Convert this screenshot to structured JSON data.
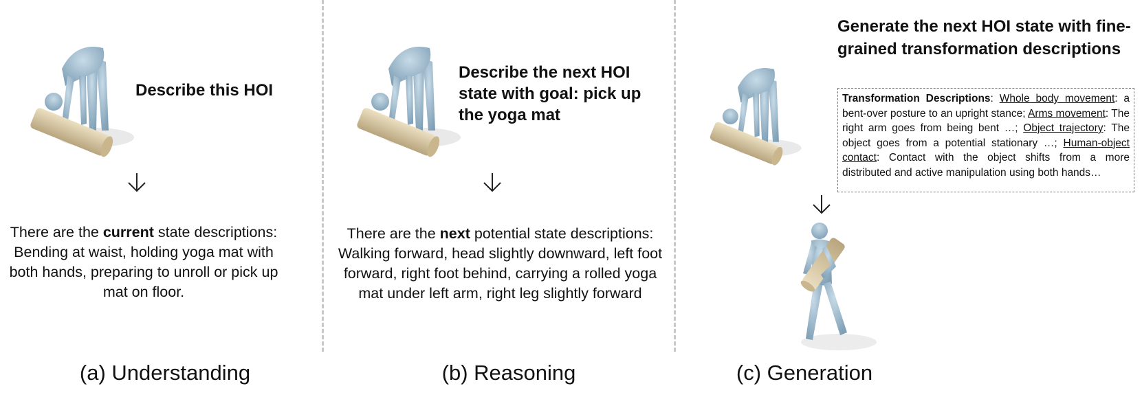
{
  "panels": {
    "understanding": {
      "prompt": "Describe this HOI",
      "arrow_icon": "arrow-down-icon",
      "desc_before": "There are the ",
      "desc_bold": "current",
      "desc_after": " state descriptions: Bending at waist, holding yoga mat with both hands, preparing to unroll or pick up mat on floor.",
      "caption": "(a) Understanding"
    },
    "reasoning": {
      "prompt": "Describe the next HOI state with goal: pick up the yoga mat",
      "arrow_icon": "arrow-down-icon",
      "desc_before": "There are the ",
      "desc_bold": "next",
      "desc_after": " potential state descriptions: Walking forward, head slightly downward, left foot forward, right foot behind, carrying a rolled yoga mat under left arm, right leg slightly forward",
      "caption": "(b) Reasoning"
    },
    "generation": {
      "prompt": "Generate the next HOI state with fine-grained transformation descriptions",
      "arrow_icon": "arrow-down-icon",
      "box": {
        "label": "Transformation Descriptions",
        "colon": ": ",
        "items": [
          {
            "key": "Whole body movement",
            "text": ": a bent-over posture to an upright stance; "
          },
          {
            "key": "Arms movement",
            "text": ": The right arm goes from being bent …; "
          },
          {
            "key": "Object trajectory",
            "text": ": The object goes from a potential stationary …; "
          },
          {
            "key": "Human-object contact",
            "text": ": Contact with the object shifts from a more distributed and active manipulation using both hands…"
          }
        ]
      },
      "caption": "(c) Generation"
    }
  },
  "colors": {
    "body": "#a9c4d6",
    "body_shade": "#7f9fb5",
    "mat": "#d9c9a3",
    "mat_shade": "#b8a57e",
    "divider": "#c8c8c8"
  }
}
